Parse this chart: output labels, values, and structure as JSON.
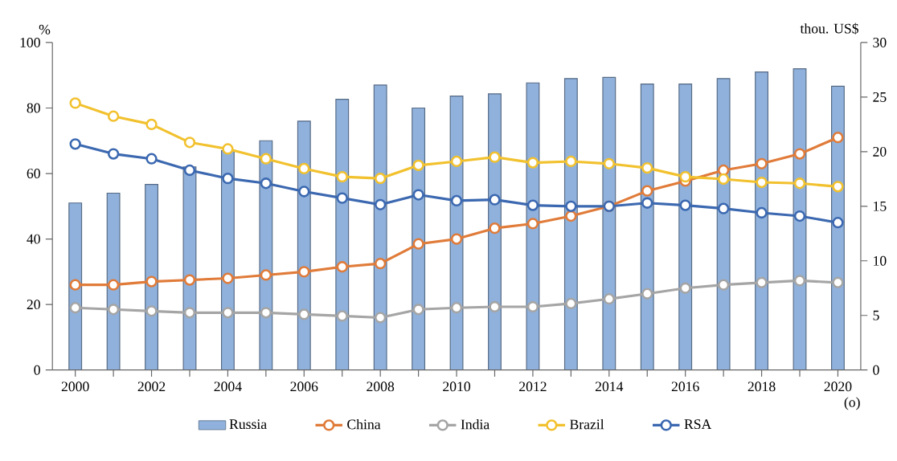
{
  "chart_data": {
    "type": "line",
    "ylabel": "%",
    "y2label": "thou. US$",
    "x": [
      2000,
      2001,
      2002,
      2003,
      2004,
      2005,
      2006,
      2007,
      2008,
      2009,
      2010,
      2011,
      2012,
      2013,
      2014,
      2015,
      2016,
      2017,
      2018,
      2019,
      2020
    ],
    "xlim": [
      1999.4,
      2020.6
    ],
    "xticks": [
      2000,
      {
        "value": 2001,
        "label": null
      },
      2002,
      {
        "value": 2003,
        "label": null
      },
      2004,
      {
        "value": 2005,
        "label": null
      },
      2006,
      {
        "value": 2007,
        "label": null
      },
      2008,
      {
        "value": 2009,
        "label": null
      },
      2010,
      {
        "value": 2011,
        "label": null
      },
      2012,
      {
        "value": 2013,
        "label": null
      },
      2014,
      {
        "value": 2015,
        "label": null
      },
      2016,
      {
        "value": 2017,
        "label": null
      },
      2018,
      {
        "value": 2019,
        "label": null
      },
      2020
    ],
    "ylim": [
      0,
      100
    ],
    "yticks": [
      0,
      20,
      40,
      60,
      80,
      100
    ],
    "y2lim": [
      0,
      30
    ],
    "y2ticks": [
      0,
      5,
      10,
      15,
      20,
      25,
      30
    ],
    "series": [
      {
        "name": "Russia",
        "type": "bar",
        "axis": "y2",
        "color": "#8fb1dc",
        "values": [
          15.3,
          16.2,
          17.0,
          18.6,
          20.1,
          21.0,
          22.8,
          24.8,
          26.1,
          24.0,
          25.1,
          25.3,
          26.3,
          26.7,
          26.8,
          26.2,
          26.2,
          26.7,
          27.3,
          27.6,
          26.0
        ]
      },
      {
        "name": "China",
        "color": "#e07b39",
        "values": [
          26,
          26,
          27,
          27.5,
          28,
          29,
          30,
          31.5,
          32.5,
          38.5,
          40,
          43.3,
          44.7,
          47,
          50,
          54.7,
          57.7,
          61,
          63,
          66,
          71
        ]
      },
      {
        "name": "India",
        "color": "#a5a5a5",
        "values": [
          19,
          18.5,
          18,
          17.5,
          17.5,
          17.5,
          17,
          16.5,
          16,
          18.5,
          19,
          19.3,
          19.3,
          20.3,
          21.7,
          23.3,
          25,
          26,
          26.7,
          27.3,
          26.7
        ]
      },
      {
        "name": "Brazil",
        "color": "#f2c12e",
        "values": [
          81.5,
          77.5,
          75,
          69.5,
          67.5,
          64.5,
          61.5,
          59,
          58.5,
          62.5,
          63.7,
          65,
          63.3,
          63.7,
          63,
          61.7,
          59,
          58.3,
          57.3,
          57,
          56
        ]
      },
      {
        "name": "RSA",
        "color": "#3b68b0",
        "values": [
          69,
          66,
          64.5,
          61,
          58.5,
          57,
          54.5,
          52.5,
          50.5,
          53.5,
          51.7,
          52,
          50.3,
          50,
          50,
          51,
          50.3,
          49.3,
          48,
          47,
          45
        ]
      }
    ],
    "annotations": [
      "(o)"
    ],
    "marker": "circle",
    "legend": "bottom",
    "grid": false
  }
}
